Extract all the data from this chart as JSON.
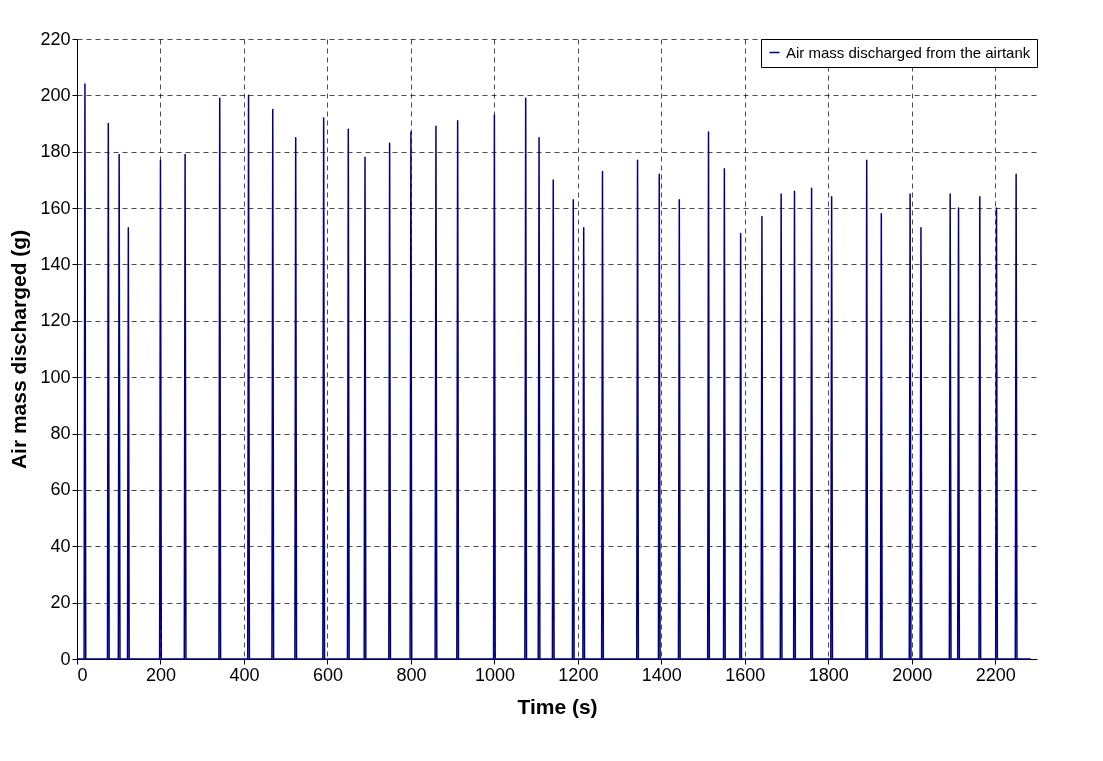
{
  "chart_data": {
    "type": "line",
    "xlabel": "Time (s)",
    "ylabel": "Air mass discharged (g)",
    "xlim": [
      0,
      2300
    ],
    "xticks": [
      0,
      200,
      400,
      600,
      800,
      1000,
      1200,
      1400,
      1600,
      1800,
      2000,
      2200
    ],
    "ylim": [
      0,
      220
    ],
    "yticks": [
      0,
      20,
      40,
      60,
      80,
      100,
      120,
      140,
      160,
      180,
      200,
      220
    ],
    "grid": true,
    "legend": "top right",
    "line_style": "solid",
    "marker": "none",
    "series": [
      {
        "name": "Air mass discharged from the airtank",
        "color": "#000080",
        "x": [
          0,
          17,
          19,
          21,
          73,
          75,
          77,
          99,
          101,
          103,
          121,
          123,
          125,
          198,
          200,
          202,
          257,
          259,
          261,
          340,
          342,
          344,
          409,
          411,
          413,
          467,
          469,
          471,
          522,
          524,
          526,
          589,
          591,
          593,
          648,
          650,
          652,
          688,
          690,
          692,
          747,
          749,
          751,
          798,
          800,
          802,
          858,
          860,
          862,
          910,
          912,
          914,
          998,
          1000,
          1002,
          1073,
          1075,
          1077,
          1105,
          1107,
          1109,
          1139,
          1141,
          1143,
          1187,
          1189,
          1191,
          1212,
          1214,
          1216,
          1257,
          1259,
          1261,
          1341,
          1343,
          1345,
          1393,
          1395,
          1397,
          1441,
          1443,
          1445,
          1511,
          1513,
          1515,
          1549,
          1551,
          1553,
          1588,
          1590,
          1592,
          1639,
          1641,
          1643,
          1685,
          1687,
          1689,
          1717,
          1719,
          1721,
          1758,
          1760,
          1762,
          1806,
          1808,
          1810,
          1890,
          1892,
          1894,
          1925,
          1927,
          1929,
          1994,
          1996,
          1998,
          2020,
          2022,
          2024,
          2090,
          2092,
          2094,
          2110,
          2112,
          2114,
          2161,
          2163,
          2165,
          2201,
          2203,
          2205,
          2248,
          2250,
          2252,
          2285
        ],
        "values": [
          0,
          0,
          204,
          0,
          0,
          190,
          0,
          0,
          179,
          0,
          0,
          153,
          0,
          0,
          177,
          0,
          0,
          179,
          0,
          0,
          199,
          0,
          0,
          200,
          0,
          0,
          195,
          0,
          0,
          185,
          0,
          0,
          192,
          0,
          0,
          188,
          0,
          0,
          178,
          0,
          0,
          183,
          0,
          0,
          187,
          0,
          0,
          189,
          0,
          0,
          191,
          0,
          0,
          193,
          0,
          0,
          199,
          0,
          0,
          185,
          0,
          0,
          170,
          0,
          0,
          163,
          0,
          0,
          153,
          0,
          0,
          173,
          0,
          0,
          177,
          0,
          0,
          172,
          0,
          0,
          163,
          0,
          0,
          187,
          0,
          0,
          174,
          0,
          0,
          151,
          0,
          0,
          157,
          0,
          0,
          165,
          0,
          0,
          166,
          0,
          0,
          167,
          0,
          0,
          164,
          0,
          0,
          177,
          0,
          0,
          158,
          0,
          0,
          165,
          0,
          0,
          153,
          0,
          0,
          165,
          0,
          0,
          160,
          0,
          0,
          164,
          0,
          0,
          160,
          0,
          0,
          172,
          0,
          0
        ]
      }
    ]
  }
}
